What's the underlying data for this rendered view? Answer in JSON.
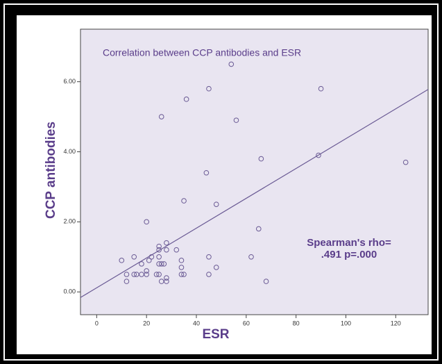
{
  "chart_data": {
    "type": "scatter",
    "title": "Correlation between CCP antibodies and ESR",
    "xlabel": "ESR",
    "ylabel": "CCP antibodies",
    "annotation": [
      "Spearman's rho=",
      ".491 p=.000"
    ],
    "xlim": [
      -6.5,
      133
    ],
    "ylim": [
      -0.65,
      7.5
    ],
    "xticks": [
      0,
      20,
      40,
      60,
      80,
      100,
      120
    ],
    "yticks": [
      {
        "value": 0,
        "label": "0.00"
      },
      {
        "value": 2,
        "label": "2.00"
      },
      {
        "value": 4,
        "label": "4.00"
      },
      {
        "value": 6,
        "label": "6.00"
      }
    ],
    "color": "#6a5a94",
    "x": [
      54,
      45,
      90,
      36,
      26,
      56,
      89,
      66,
      124,
      44,
      35,
      48,
      20,
      65,
      28,
      25,
      32,
      28,
      25,
      10,
      15,
      12,
      12,
      15,
      16,
      18,
      18,
      20,
      20,
      21,
      22,
      24,
      25,
      25,
      25,
      26,
      27,
      26,
      28,
      28,
      34,
      34,
      34,
      35,
      45,
      45,
      48,
      62,
      68
    ],
    "y": [
      6.5,
      5.8,
      5.8,
      5.5,
      5.0,
      4.9,
      3.9,
      3.8,
      3.7,
      3.4,
      2.6,
      2.5,
      2.0,
      1.8,
      1.4,
      1.3,
      1.2,
      1.2,
      1.2,
      0.9,
      1.0,
      0.5,
      0.3,
      0.5,
      0.5,
      0.8,
      0.5,
      0.6,
      0.5,
      0.9,
      1.0,
      0.5,
      0.5,
      0.8,
      1.0,
      0.8,
      0.8,
      0.3,
      0.4,
      0.3,
      0.9,
      0.7,
      0.5,
      0.5,
      1.0,
      0.5,
      0.7,
      1.0,
      0.3
    ],
    "fit_line": {
      "x": [
        -6.5,
        133
      ],
      "y": [
        -0.16,
        5.78
      ]
    }
  }
}
